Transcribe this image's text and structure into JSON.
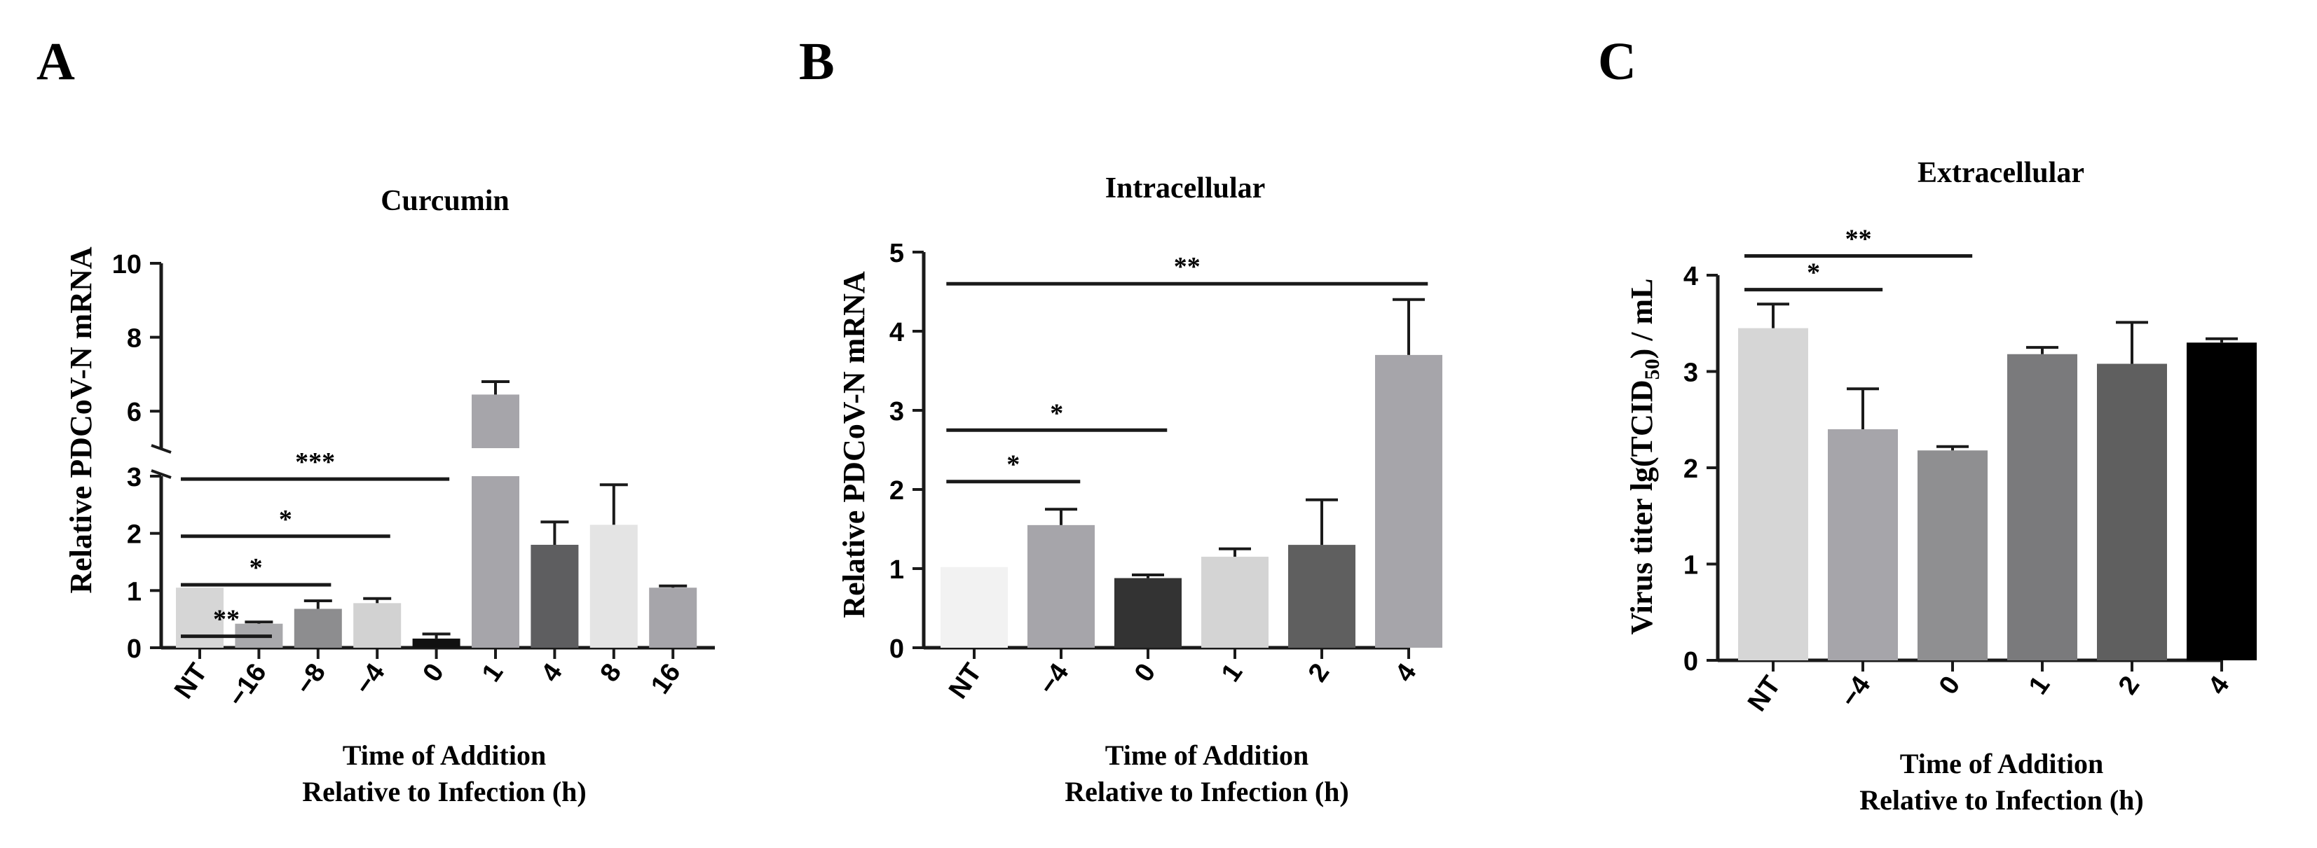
{
  "chart_data": [
    {
      "type": "bar",
      "panel_label": "A",
      "title": "Curcumin",
      "xlabel_lines": [
        "Time of Addition",
        "Relative to Infection (h)"
      ],
      "ylabel": "Relative PDCoV-N mRNA",
      "categories": [
        "NT",
        "−16",
        "−8",
        "−4",
        "0",
        "1",
        "4",
        "8",
        "16"
      ],
      "values": [
        1.05,
        0.42,
        0.68,
        0.78,
        0.16,
        6.45,
        1.8,
        2.15,
        1.05
      ],
      "errors": [
        0,
        0.03,
        0.14,
        0.08,
        0.08,
        0.35,
        0.4,
        0.7,
        0.03
      ],
      "colors": [
        "#d6d6d6",
        "#a9a9ac",
        "#8d8d8f",
        "#d2d2d2",
        "#111111",
        "#a6a5aa",
        "#5e5e60",
        "#e4e4e4",
        "#a6a5aa"
      ],
      "axis_break": {
        "from": 3,
        "to": 5
      },
      "ylim": [
        0,
        10
      ],
      "yticks": [
        0,
        1,
        2,
        3,
        6,
        8,
        10
      ],
      "significance": [
        {
          "from": 0,
          "to": 1,
          "label": "**",
          "y": 0.2
        },
        {
          "from": 0,
          "to": 2,
          "label": "*",
          "y": 1.1
        },
        {
          "from": 0,
          "to": 3,
          "label": "*",
          "y": 1.95
        },
        {
          "from": 0,
          "to": 4,
          "label": "***",
          "y": 2.95
        }
      ]
    },
    {
      "type": "bar",
      "panel_label": "B",
      "title": "Intracellular",
      "xlabel_lines": [
        "Time of Addition",
        "Relative to Infection (h)"
      ],
      "ylabel": "Relative PDCoV-N mRNA",
      "categories": [
        "NT",
        "−4",
        "0",
        "1",
        "2",
        "4"
      ],
      "values": [
        1.02,
        1.55,
        0.88,
        1.15,
        1.3,
        3.7
      ],
      "errors": [
        0,
        0.2,
        0.04,
        0.1,
        0.57,
        0.7
      ],
      "colors": [
        "#f2f2f2",
        "#a6a5aa",
        "#333333",
        "#d4d4d4",
        "#5f5f5f",
        "#a6a5aa"
      ],
      "ylim": [
        0,
        5
      ],
      "yticks": [
        0,
        1,
        2,
        3,
        4,
        5
      ],
      "significance": [
        {
          "from": 0,
          "to": 1,
          "label": "*",
          "y": 2.1
        },
        {
          "from": 0,
          "to": 2,
          "label": "*",
          "y": 2.75
        },
        {
          "from": 0,
          "to": 5,
          "label": "**",
          "y": 4.6
        }
      ]
    },
    {
      "type": "bar",
      "panel_label": "C",
      "title": "Extracellular",
      "xlabel_lines": [
        "Time of Addition",
        "Relative to Infection (h)"
      ],
      "ylabel": "Virus titer lg(TCID50) / mL",
      "ylabel_parts": [
        "Virus titer lg(TCID",
        "50",
        ") / mL"
      ],
      "categories": [
        "NT",
        "−4",
        "0",
        "1",
        "2",
        "4"
      ],
      "values": [
        3.45,
        2.4,
        2.18,
        3.18,
        3.08,
        3.3
      ],
      "errors": [
        0.25,
        0.42,
        0.04,
        0.07,
        0.43,
        0.04
      ],
      "colors": [
        "#d6d6d6",
        "#a6a5aa",
        "#8f8f91",
        "#7a7a7c",
        "#5f5f5f",
        "#000000"
      ],
      "ylim": [
        0,
        4
      ],
      "yticks": [
        0,
        1,
        2,
        3,
        4
      ],
      "significance": [
        {
          "from": 0,
          "to": 1,
          "label": "*",
          "y": 3.85
        },
        {
          "from": 0,
          "to": 2,
          "label": "**",
          "y": 4.2
        }
      ]
    }
  ]
}
